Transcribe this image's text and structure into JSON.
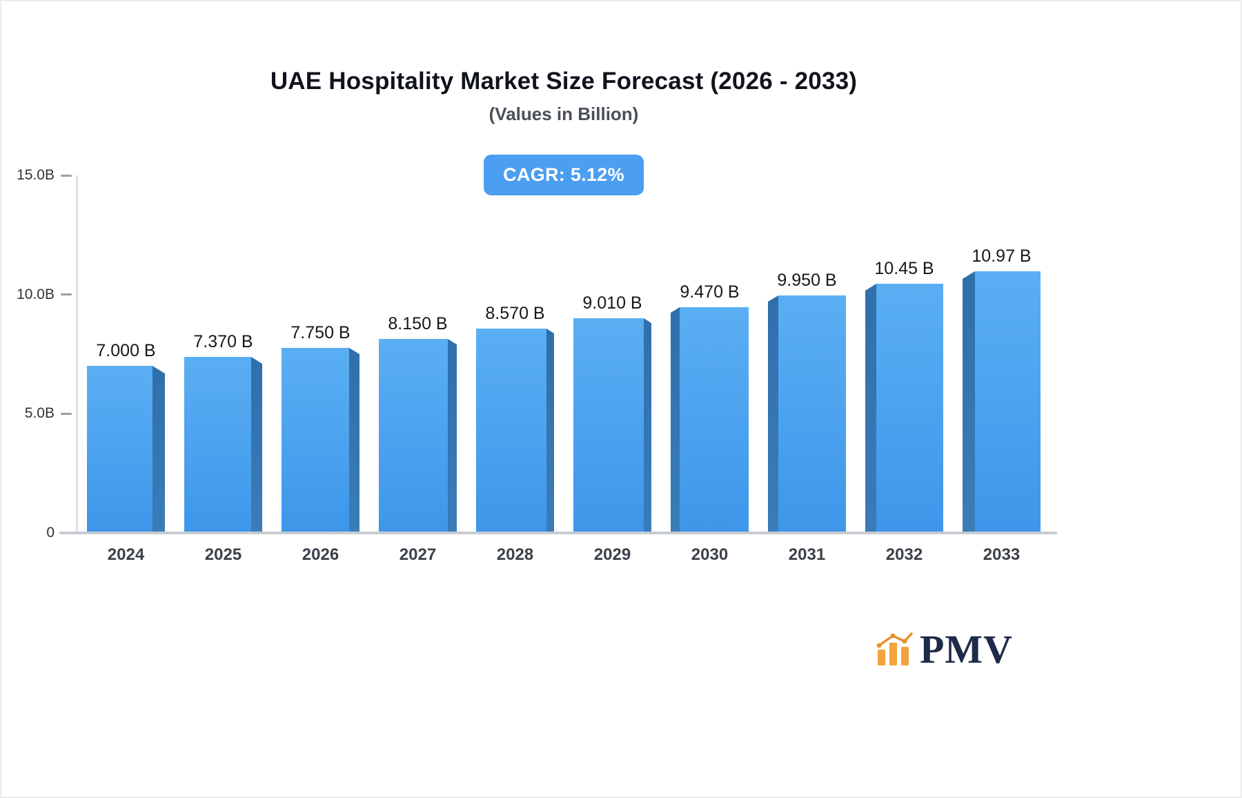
{
  "page": {
    "title": "UAE Hospitality Market Size Forecast (2026 - 2033)",
    "subtitle": "(Values in Billion)",
    "cagr_badge": "CAGR: 5.12%"
  },
  "chart_data": {
    "type": "bar",
    "title": "UAE Hospitality Market Size Forecast (2026 - 2033)",
    "subtitle": "(Values in Billion)",
    "unit": "Billion",
    "cagr": "5.12%",
    "categories": [
      "2024",
      "2025",
      "2026",
      "2027",
      "2028",
      "2029",
      "2030",
      "2031",
      "2032",
      "2033"
    ],
    "values": [
      7.0,
      7.37,
      7.75,
      8.15,
      8.57,
      9.01,
      9.47,
      9.95,
      10.45,
      10.97
    ],
    "value_labels": [
      "7.000 B",
      "7.370 B",
      "7.750 B",
      "8.150 B",
      "8.570 B",
      "9.010 B",
      "9.470 B",
      "9.950 B",
      "10.45 B",
      "10.97 B"
    ],
    "ylim": [
      0,
      15
    ],
    "y_ticks": [
      {
        "label": "0",
        "value": 0
      },
      {
        "label": "5.0B",
        "value": 5
      },
      {
        "label": "10.0B",
        "value": 10
      },
      {
        "label": "15.0B",
        "value": 15
      }
    ],
    "grid": false,
    "legend": "none",
    "bar_color_top": "#5aaff3",
    "bar_color_bottom": "#3e96ea",
    "bar_side_color": "#2f6fac"
  },
  "branding": {
    "logo_text": "PMV",
    "logo_orange": "#f2a33c",
    "logo_navy": "#1e2a4a"
  },
  "colors": {
    "badge_bg": "#4b9ef0",
    "badge_text": "#ffffff",
    "axis_line": "#c6cbd1",
    "tick": "#9aa0a6"
  }
}
